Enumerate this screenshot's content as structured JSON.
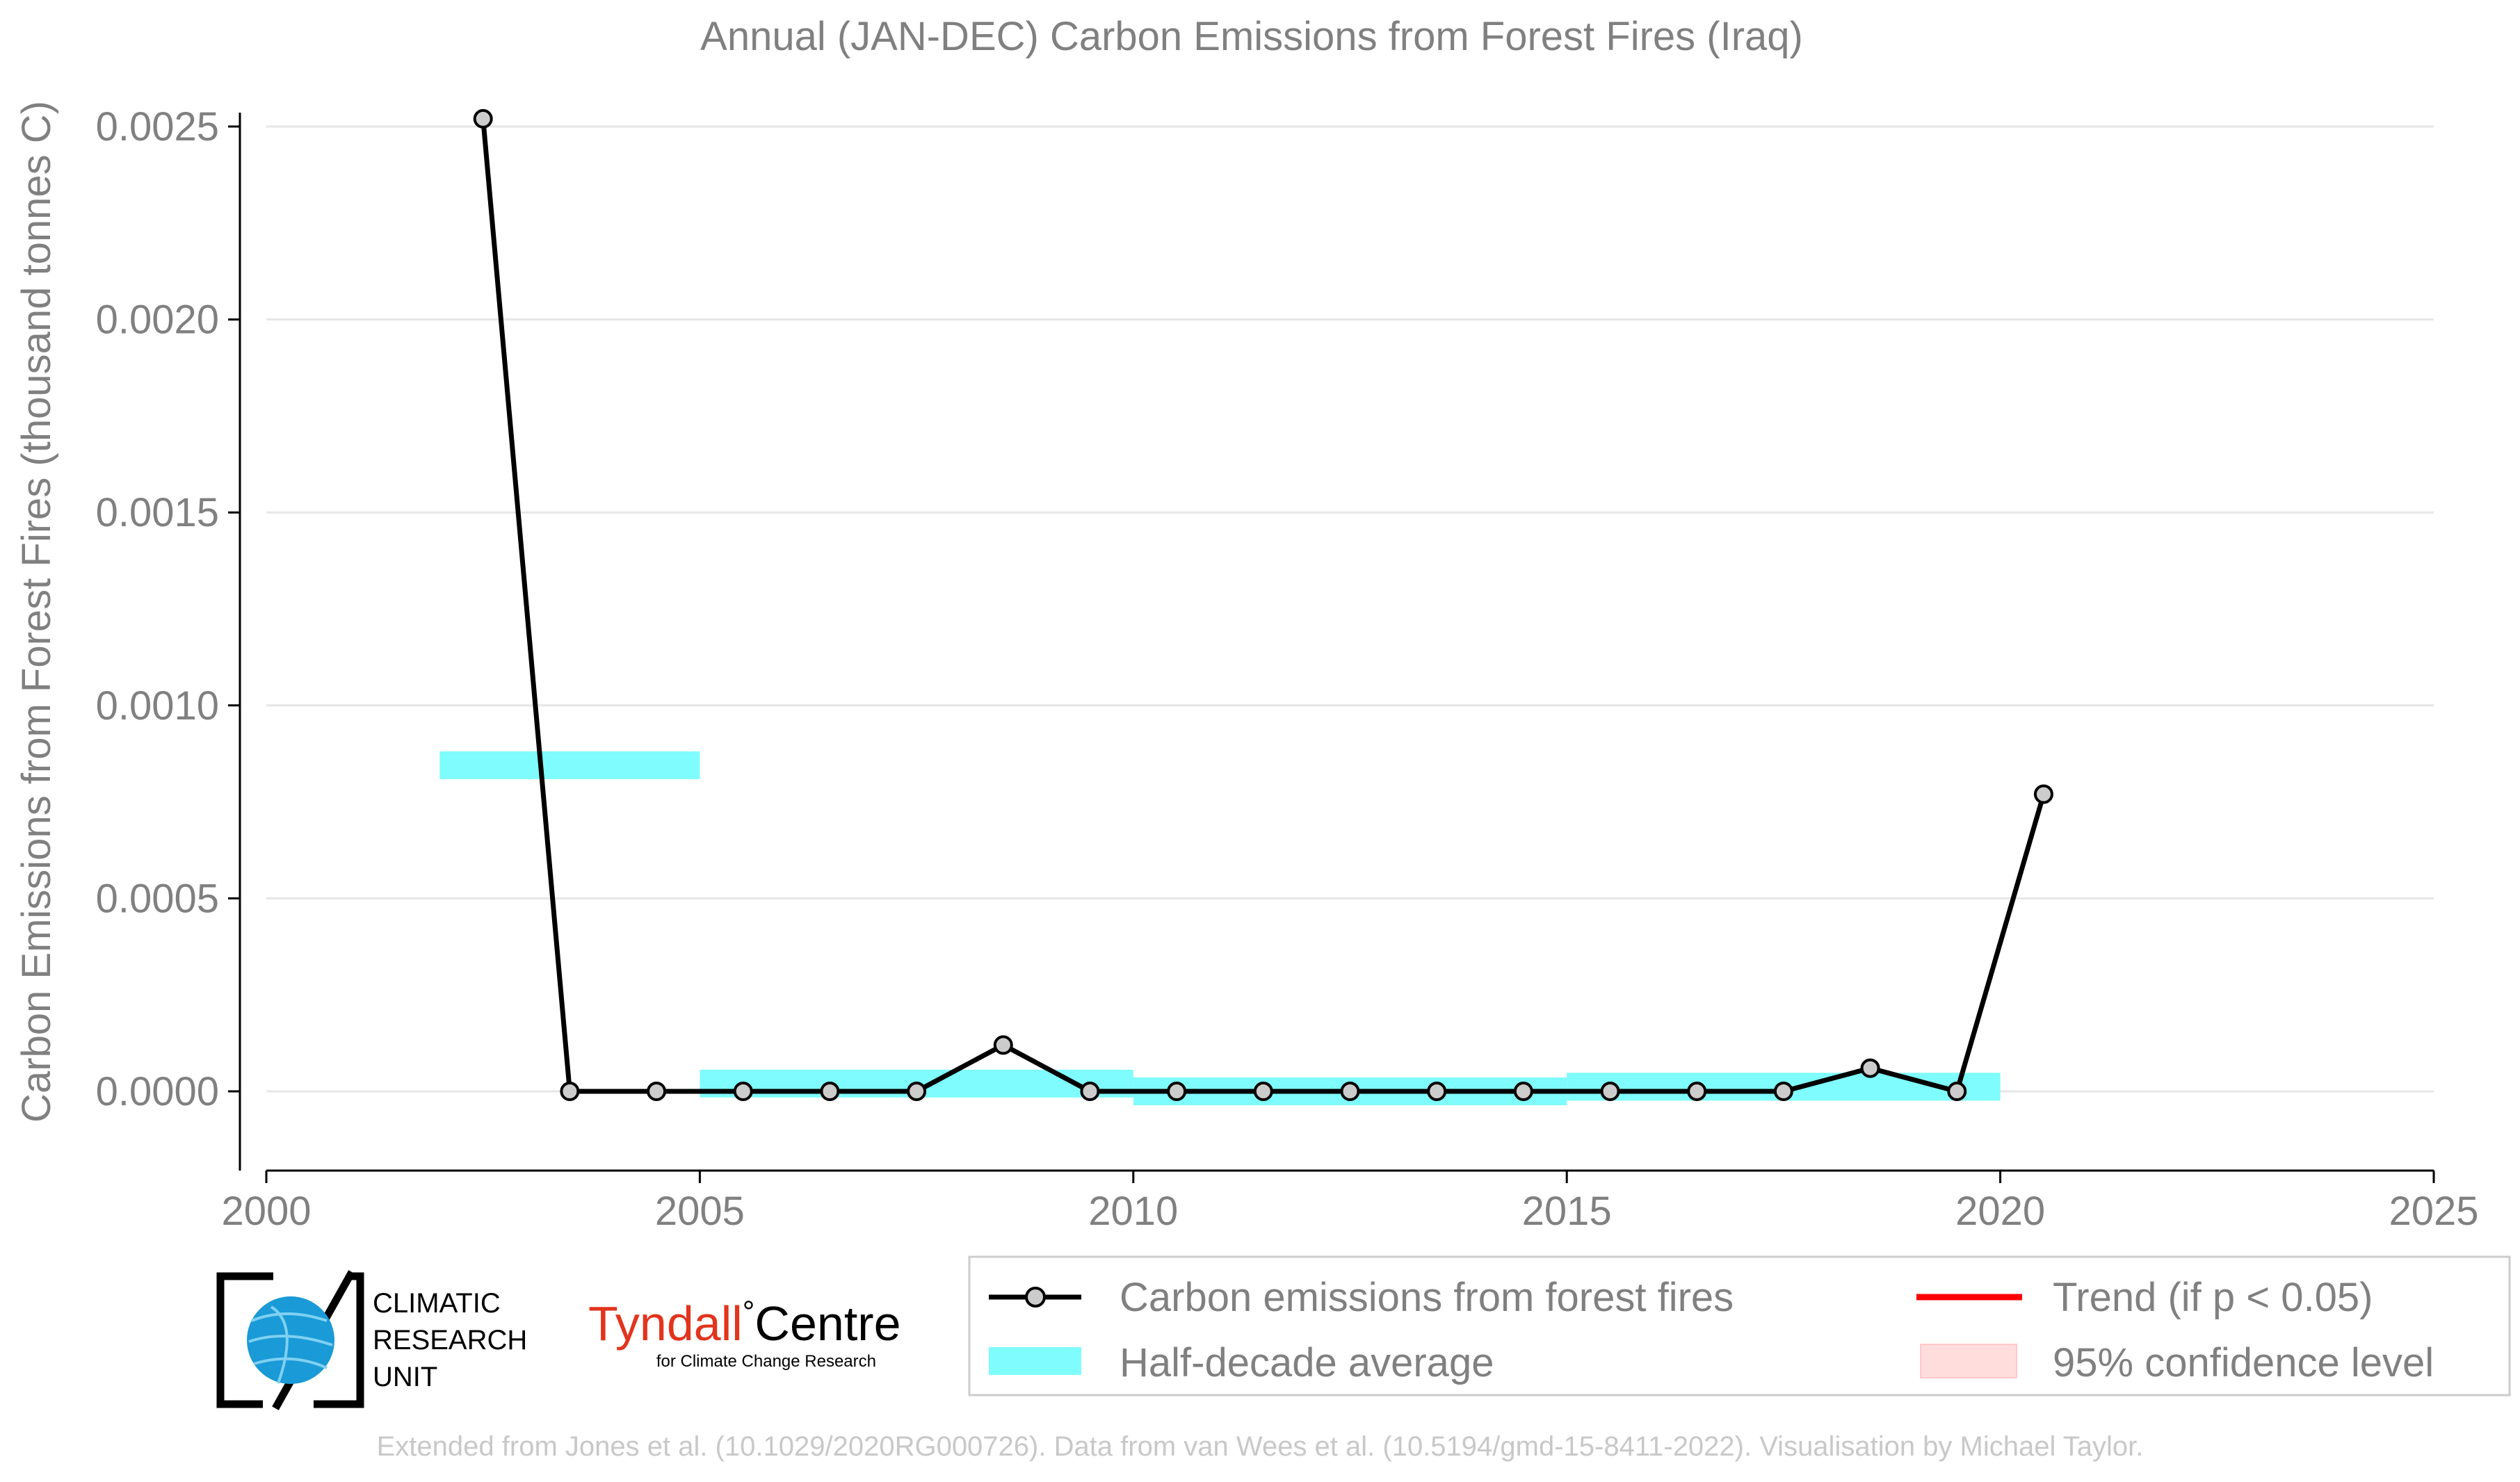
{
  "chart_data": {
    "type": "line",
    "title": "Annual (JAN-DEC) Carbon Emissions from Forest Fires (Iraq)",
    "ylabel": "Carbon Emissions from Forest Fires (thousand tonnes C)",
    "xlabel": "",
    "xlim": [
      2000,
      2025
    ],
    "ylim": [
      -0.00018,
      0.0025
    ],
    "x_ticks": [
      2000,
      2005,
      2010,
      2015,
      2020,
      2025
    ],
    "x_tick_labels": [
      "2000",
      "2005",
      "2010",
      "2015",
      "2020",
      "2025"
    ],
    "y_ticks": [
      0,
      0.0005,
      0.001,
      0.0015,
      0.002,
      0.0025
    ],
    "y_tick_labels": [
      "0.0000",
      "0.0005",
      "0.0010",
      "0.0015",
      "0.0020",
      "0.0025"
    ],
    "grid": "horizontal",
    "series": [
      {
        "name": "Carbon emissions from forest fires",
        "color": "#000000",
        "marker_fill": "#cccccc",
        "x": [
          2002.5,
          2003.5,
          2004.5,
          2005.5,
          2006.5,
          2007.5,
          2008.5,
          2009.5,
          2010.5,
          2011.5,
          2012.5,
          2013.5,
          2014.5,
          2015.5,
          2016.5,
          2017.5,
          2018.5,
          2019.5,
          2020.5
        ],
        "y": [
          0.00252,
          0.0,
          0.0,
          0.0,
          0.0,
          0.0,
          0.00012,
          0.0,
          0.0,
          0.0,
          0.0,
          0.0,
          0.0,
          0.0,
          0.0,
          0.0,
          6e-05,
          0.0,
          0.00077
        ]
      }
    ],
    "half_decade_average": {
      "name": "Half-decade average",
      "color": "#7ffcfd",
      "segments": [
        {
          "x0": 2002,
          "x1": 2005,
          "y": 0.000845
        },
        {
          "x0": 2005,
          "x1": 2010,
          "y": 2e-05
        },
        {
          "x0": 2010,
          "x1": 2015,
          "y": 0.0
        },
        {
          "x0": 2015,
          "x1": 2020,
          "y": 1.2e-05
        }
      ]
    },
    "legend": {
      "placement": "bottom",
      "entries": [
        {
          "label": "Carbon emissions from forest fires",
          "kind": "line-marker",
          "color": "#000000"
        },
        {
          "label": "Trend (if p < 0.05)",
          "kind": "line",
          "color": "#ff0000"
        },
        {
          "label": "Half-decade average",
          "kind": "band",
          "color": "#7ffcfd"
        },
        {
          "label": "95% confidence level",
          "kind": "patch",
          "color": "#ffdddd"
        }
      ]
    }
  },
  "logos": {
    "cru_lines": [
      "CLIMATIC",
      "RESEARCH",
      "UNIT"
    ],
    "tyndall_name": "Tyndall",
    "tyndall_degree": "°",
    "tyndall_centre": "Centre",
    "tyndall_sub": "for Climate Change Research"
  },
  "footer": {
    "credit": "Extended from Jones et al. (10.1029/2020RG000726). Data from van Wees et al. (10.5194/gmd-15-8411-2022). Visualisation by Michael Taylor."
  },
  "colors": {
    "text": "#808080",
    "footer_text": "#c8c8c8",
    "grid": "#e6e6e6",
    "axis": "#000000",
    "tyndall_red": "#e2341d",
    "cru_blue": "#1a9ad6"
  }
}
